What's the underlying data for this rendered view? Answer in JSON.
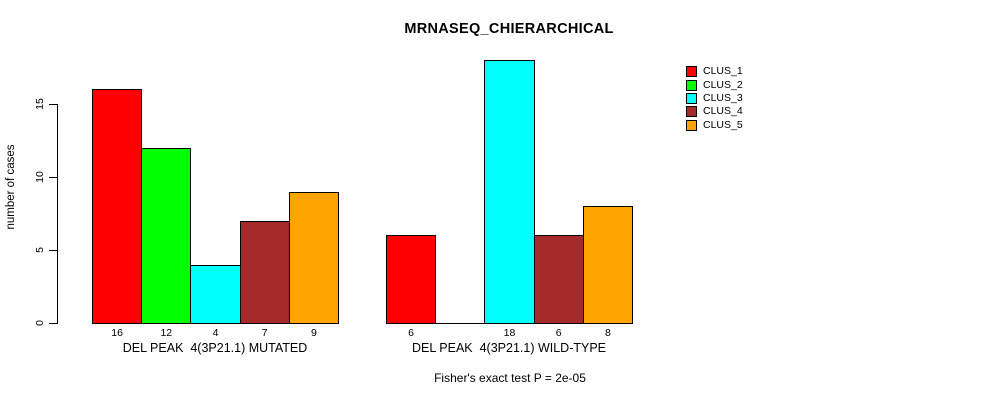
{
  "chart_data": {
    "type": "bar",
    "title": "MRNASEQ_CHIERARCHICAL",
    "ylabel": "number of cases",
    "xlabel": "",
    "yticks": [
      0,
      5,
      10,
      15
    ],
    "ylim": [
      0,
      18
    ],
    "grid": false,
    "legend_position": "right-top-outside",
    "categories": [
      "DEL PEAK  4(3P21.1) MUTATED",
      "DEL PEAK  4(3P21.1) WILD-TYPE"
    ],
    "series": [
      {
        "name": "CLUS_1",
        "color": "#FF0000",
        "values": [
          16,
          6
        ]
      },
      {
        "name": "CLUS_2",
        "color": "#00FF00",
        "values": [
          12,
          0
        ]
      },
      {
        "name": "CLUS_3",
        "color": "#00FFFF",
        "values": [
          4,
          18
        ]
      },
      {
        "name": "CLUS_4",
        "color": "#A52A2A",
        "values": [
          7,
          6
        ]
      },
      {
        "name": "CLUS_5",
        "color": "#FFA500",
        "values": [
          9,
          8
        ]
      }
    ],
    "bar_value_labels": [
      [
        "16",
        "12",
        "4",
        "7",
        "9"
      ],
      [
        "6",
        null,
        "18",
        "6",
        "8"
      ]
    ],
    "footnote": "Fisher's exact test P = 2e-05"
  }
}
